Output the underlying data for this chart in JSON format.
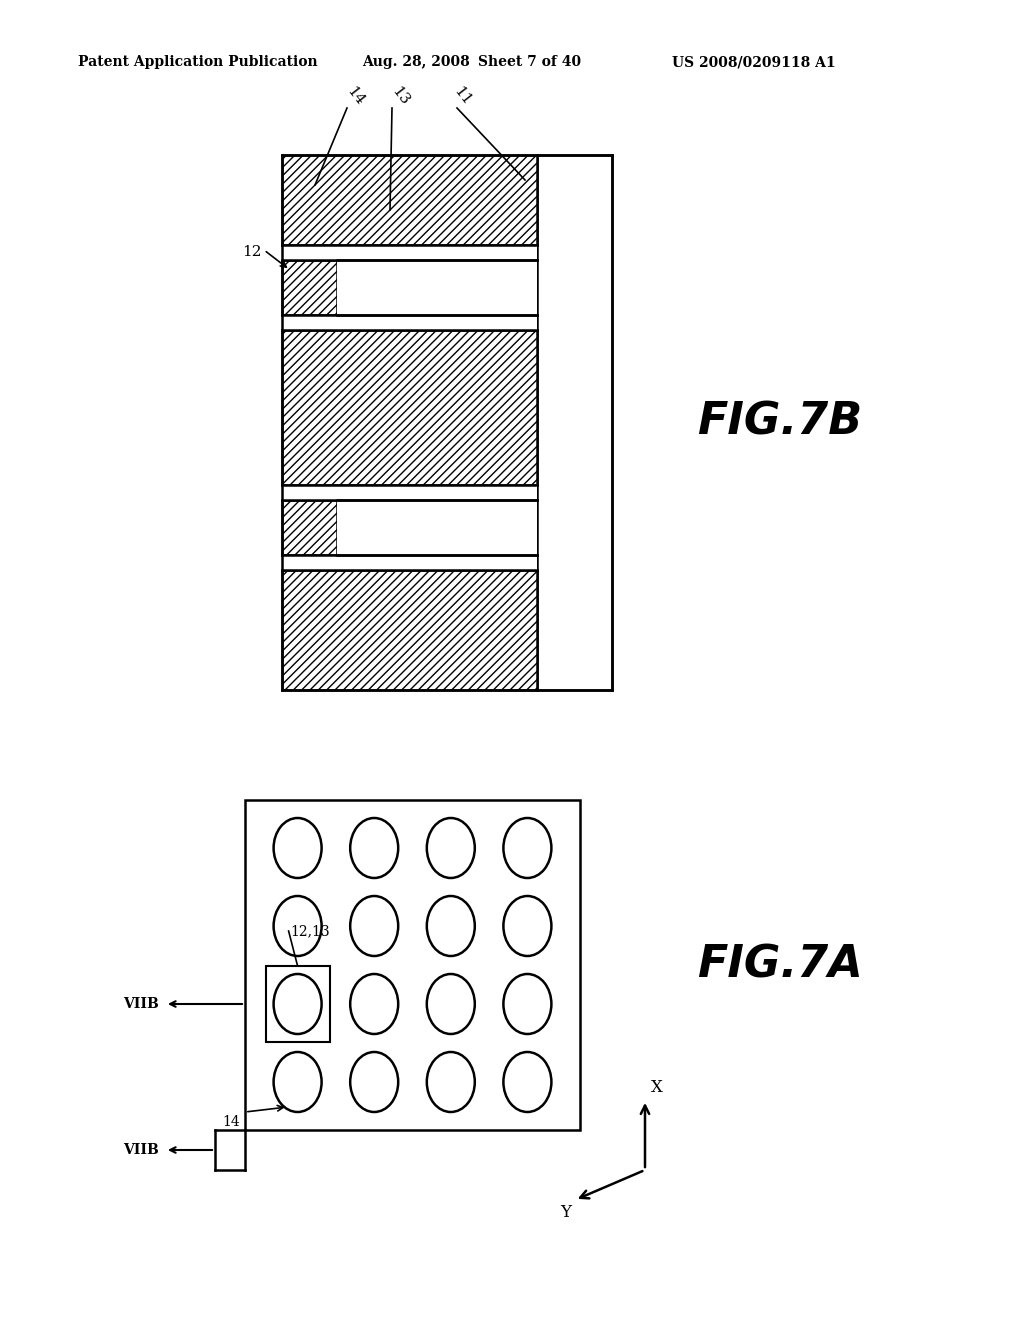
{
  "bg_color": "#ffffff",
  "header_text": "Patent Application Publication",
  "header_date": "Aug. 28, 2008",
  "header_sheet": "Sheet 7 of 40",
  "header_patent": "US 2008/0209118 A1",
  "fig7b_label": "FIG.7B",
  "fig7a_label": "FIG.7A",
  "line_color": "#000000",
  "label_14": "14",
  "label_13": "13",
  "label_11": "11",
  "label_12": "12",
  "label_viib_top": "VIIB",
  "label_viib_bot": "VIIB",
  "label_12_13": "12,13",
  "label_14_lower": "14",
  "label_x": "X",
  "label_y": "Y"
}
